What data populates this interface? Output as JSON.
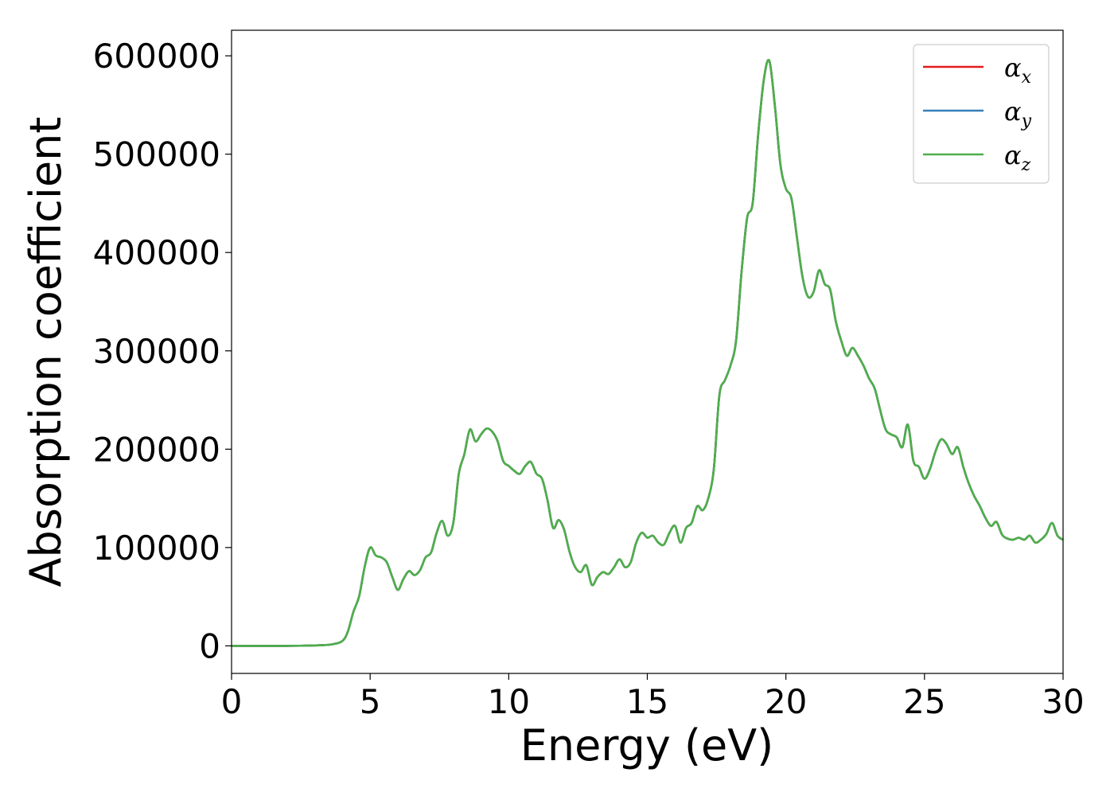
{
  "chart_data": {
    "type": "line",
    "title": "",
    "xlabel": "Energy (eV)",
    "ylabel": "Absorption coefficient",
    "xlim": [
      0,
      30
    ],
    "ylim": [
      -28000,
      626000
    ],
    "xticks": [
      "0",
      "5",
      "10",
      "15",
      "20",
      "25",
      "30"
    ],
    "yticks": [
      "0",
      "100000",
      "200000",
      "300000",
      "400000",
      "500000",
      "600000"
    ],
    "grid": false,
    "legend_position": "top-right",
    "series": [
      {
        "name": "α_x",
        "legend_base": "α",
        "legend_sub": "x",
        "color": "#e41a1c",
        "x": [
          0,
          1,
          2,
          3,
          3.6,
          4,
          4.2,
          4.4,
          4.6,
          4.8,
          5.0,
          5.2,
          5.4,
          5.6,
          5.8,
          6.0,
          6.2,
          6.4,
          6.6,
          6.8,
          7.0,
          7.2,
          7.4,
          7.6,
          7.8,
          8.0,
          8.2,
          8.4,
          8.6,
          8.8,
          9.0,
          9.2,
          9.4,
          9.6,
          9.8,
          10.0,
          10.2,
          10.4,
          10.6,
          10.8,
          11.0,
          11.2,
          11.4,
          11.6,
          11.8,
          12.0,
          12.2,
          12.4,
          12.6,
          12.8,
          13.0,
          13.2,
          13.4,
          13.6,
          13.8,
          14.0,
          14.2,
          14.4,
          14.6,
          14.8,
          15.0,
          15.2,
          15.4,
          15.6,
          15.8,
          16.0,
          16.2,
          16.4,
          16.6,
          16.8,
          17.0,
          17.2,
          17.4,
          17.6,
          17.8,
          18.0,
          18.2,
          18.4,
          18.6,
          18.8,
          19.0,
          19.2,
          19.4,
          19.6,
          19.8,
          20.0,
          20.2,
          20.4,
          20.6,
          20.8,
          21.0,
          21.2,
          21.4,
          21.6,
          21.8,
          22.0,
          22.2,
          22.4,
          22.6,
          22.8,
          23.0,
          23.2,
          23.4,
          23.6,
          23.8,
          24.0,
          24.2,
          24.4,
          24.6,
          24.8,
          25.0,
          25.2,
          25.4,
          25.6,
          25.8,
          26.0,
          26.2,
          26.4,
          26.6,
          26.8,
          27.0,
          27.2,
          27.4,
          27.6,
          27.8,
          28.0,
          28.2,
          28.4,
          28.6,
          28.8,
          29.0,
          29.2,
          29.4,
          29.6,
          29.8,
          30.0
        ],
        "y": [
          0,
          0,
          0,
          500,
          1500,
          5000,
          15000,
          35000,
          50000,
          80000,
          100000,
          92000,
          90000,
          85000,
          70000,
          57000,
          68000,
          76000,
          72000,
          77000,
          90000,
          95000,
          115000,
          127000,
          112000,
          125000,
          175000,
          195000,
          220000,
          208000,
          215000,
          221000,
          218000,
          208000,
          188000,
          183000,
          178000,
          175000,
          183000,
          187000,
          175000,
          170000,
          148000,
          120000,
          128000,
          118000,
          95000,
          80000,
          75000,
          82000,
          62000,
          70000,
          75000,
          73000,
          80000,
          88000,
          80000,
          85000,
          105000,
          115000,
          110000,
          112000,
          105000,
          103000,
          115000,
          122000,
          105000,
          120000,
          125000,
          142000,
          138000,
          150000,
          180000,
          255000,
          270000,
          285000,
          310000,
          380000,
          435000,
          450000,
          520000,
          575000,
          595000,
          550000,
          490000,
          465000,
          455000,
          415000,
          375000,
          355000,
          360000,
          382000,
          368000,
          362000,
          330000,
          310000,
          295000,
          303000,
          295000,
          285000,
          272000,
          262000,
          240000,
          220000,
          215000,
          212000,
          202000,
          225000,
          188000,
          182000,
          170000,
          180000,
          198000,
          210000,
          205000,
          195000,
          202000,
          182000,
          165000,
          152000,
          142000,
          130000,
          122000,
          126000,
          113000,
          109000,
          108000,
          110000,
          108000,
          112000,
          105000,
          108000,
          114000,
          125000,
          112000,
          108000
        ]
      },
      {
        "name": "α_y",
        "legend_base": "α",
        "legend_sub": "y",
        "color": "#377eb8",
        "x": [
          0,
          1,
          2,
          3,
          3.6,
          4,
          4.2,
          4.4,
          4.6,
          4.8,
          5.0,
          5.2,
          5.4,
          5.6,
          5.8,
          6.0,
          6.2,
          6.4,
          6.6,
          6.8,
          7.0,
          7.2,
          7.4,
          7.6,
          7.8,
          8.0,
          8.2,
          8.4,
          8.6,
          8.8,
          9.0,
          9.2,
          9.4,
          9.6,
          9.8,
          10.0,
          10.2,
          10.4,
          10.6,
          10.8,
          11.0,
          11.2,
          11.4,
          11.6,
          11.8,
          12.0,
          12.2,
          12.4,
          12.6,
          12.8,
          13.0,
          13.2,
          13.4,
          13.6,
          13.8,
          14.0,
          14.2,
          14.4,
          14.6,
          14.8,
          15.0,
          15.2,
          15.4,
          15.6,
          15.8,
          16.0,
          16.2,
          16.4,
          16.6,
          16.8,
          17.0,
          17.2,
          17.4,
          17.6,
          17.8,
          18.0,
          18.2,
          18.4,
          18.6,
          18.8,
          19.0,
          19.2,
          19.4,
          19.6,
          19.8,
          20.0,
          20.2,
          20.4,
          20.6,
          20.8,
          21.0,
          21.2,
          21.4,
          21.6,
          21.8,
          22.0,
          22.2,
          22.4,
          22.6,
          22.8,
          23.0,
          23.2,
          23.4,
          23.6,
          23.8,
          24.0,
          24.2,
          24.4,
          24.6,
          24.8,
          25.0,
          25.2,
          25.4,
          25.6,
          25.8,
          26.0,
          26.2,
          26.4,
          26.6,
          26.8,
          27.0,
          27.2,
          27.4,
          27.6,
          27.8,
          28.0,
          28.2,
          28.4,
          28.6,
          28.8,
          29.0,
          29.2,
          29.4,
          29.6,
          29.8,
          30.0
        ],
        "y": [
          0,
          0,
          0,
          500,
          1500,
          5000,
          15000,
          35000,
          50000,
          80000,
          100000,
          92000,
          90000,
          85000,
          70000,
          57000,
          68000,
          76000,
          72000,
          77000,
          90000,
          95000,
          115000,
          127000,
          112000,
          125000,
          175000,
          195000,
          220000,
          208000,
          215000,
          221000,
          218000,
          208000,
          188000,
          183000,
          178000,
          175000,
          183000,
          187000,
          175000,
          170000,
          148000,
          120000,
          128000,
          118000,
          95000,
          80000,
          75000,
          82000,
          62000,
          70000,
          75000,
          73000,
          80000,
          88000,
          80000,
          85000,
          105000,
          115000,
          110000,
          112000,
          105000,
          103000,
          115000,
          122000,
          105000,
          120000,
          125000,
          142000,
          138000,
          150000,
          180000,
          255000,
          270000,
          285000,
          310000,
          380000,
          435000,
          450000,
          520000,
          575000,
          595000,
          550000,
          490000,
          465000,
          455000,
          415000,
          375000,
          355000,
          360000,
          382000,
          368000,
          362000,
          330000,
          310000,
          295000,
          303000,
          295000,
          285000,
          272000,
          262000,
          240000,
          220000,
          215000,
          212000,
          202000,
          225000,
          188000,
          182000,
          170000,
          180000,
          198000,
          210000,
          205000,
          195000,
          202000,
          182000,
          165000,
          152000,
          142000,
          130000,
          122000,
          126000,
          113000,
          109000,
          108000,
          110000,
          108000,
          112000,
          105000,
          108000,
          114000,
          125000,
          112000,
          108000
        ]
      },
      {
        "name": "α_z",
        "legend_base": "α",
        "legend_sub": "z",
        "color": "#4daf4a",
        "x": [
          0,
          1,
          2,
          3,
          3.6,
          4,
          4.2,
          4.4,
          4.6,
          4.8,
          5.0,
          5.2,
          5.4,
          5.6,
          5.8,
          6.0,
          6.2,
          6.4,
          6.6,
          6.8,
          7.0,
          7.2,
          7.4,
          7.6,
          7.8,
          8.0,
          8.2,
          8.4,
          8.6,
          8.8,
          9.0,
          9.2,
          9.4,
          9.6,
          9.8,
          10.0,
          10.2,
          10.4,
          10.6,
          10.8,
          11.0,
          11.2,
          11.4,
          11.6,
          11.8,
          12.0,
          12.2,
          12.4,
          12.6,
          12.8,
          13.0,
          13.2,
          13.4,
          13.6,
          13.8,
          14.0,
          14.2,
          14.4,
          14.6,
          14.8,
          15.0,
          15.2,
          15.4,
          15.6,
          15.8,
          16.0,
          16.2,
          16.4,
          16.6,
          16.8,
          17.0,
          17.2,
          17.4,
          17.6,
          17.8,
          18.0,
          18.2,
          18.4,
          18.6,
          18.8,
          19.0,
          19.2,
          19.4,
          19.6,
          19.8,
          20.0,
          20.2,
          20.4,
          20.6,
          20.8,
          21.0,
          21.2,
          21.4,
          21.6,
          21.8,
          22.0,
          22.2,
          22.4,
          22.6,
          22.8,
          23.0,
          23.2,
          23.4,
          23.6,
          23.8,
          24.0,
          24.2,
          24.4,
          24.6,
          24.8,
          25.0,
          25.2,
          25.4,
          25.6,
          25.8,
          26.0,
          26.2,
          26.4,
          26.6,
          26.8,
          27.0,
          27.2,
          27.4,
          27.6,
          27.8,
          28.0,
          28.2,
          28.4,
          28.6,
          28.8,
          29.0,
          29.2,
          29.4,
          29.6,
          29.8,
          30.0
        ],
        "y": [
          0,
          0,
          0,
          500,
          1500,
          5000,
          15000,
          35000,
          50000,
          80000,
          100000,
          92000,
          90000,
          85000,
          70000,
          57000,
          68000,
          76000,
          72000,
          77000,
          90000,
          95000,
          115000,
          127000,
          112000,
          125000,
          175000,
          195000,
          220000,
          208000,
          215000,
          221000,
          218000,
          208000,
          188000,
          183000,
          178000,
          175000,
          183000,
          187000,
          175000,
          170000,
          148000,
          120000,
          128000,
          118000,
          95000,
          80000,
          75000,
          82000,
          62000,
          70000,
          75000,
          73000,
          80000,
          88000,
          80000,
          85000,
          105000,
          115000,
          110000,
          112000,
          105000,
          103000,
          115000,
          122000,
          105000,
          120000,
          125000,
          142000,
          138000,
          150000,
          180000,
          255000,
          270000,
          285000,
          310000,
          380000,
          435000,
          450000,
          520000,
          575000,
          595000,
          550000,
          490000,
          465000,
          455000,
          415000,
          375000,
          355000,
          360000,
          382000,
          368000,
          362000,
          330000,
          310000,
          295000,
          303000,
          295000,
          285000,
          272000,
          262000,
          240000,
          220000,
          215000,
          212000,
          202000,
          225000,
          188000,
          182000,
          170000,
          180000,
          198000,
          210000,
          205000,
          195000,
          202000,
          182000,
          165000,
          152000,
          142000,
          130000,
          122000,
          126000,
          113000,
          109000,
          108000,
          110000,
          108000,
          112000,
          105000,
          108000,
          114000,
          125000,
          112000,
          108000
        ]
      }
    ]
  }
}
